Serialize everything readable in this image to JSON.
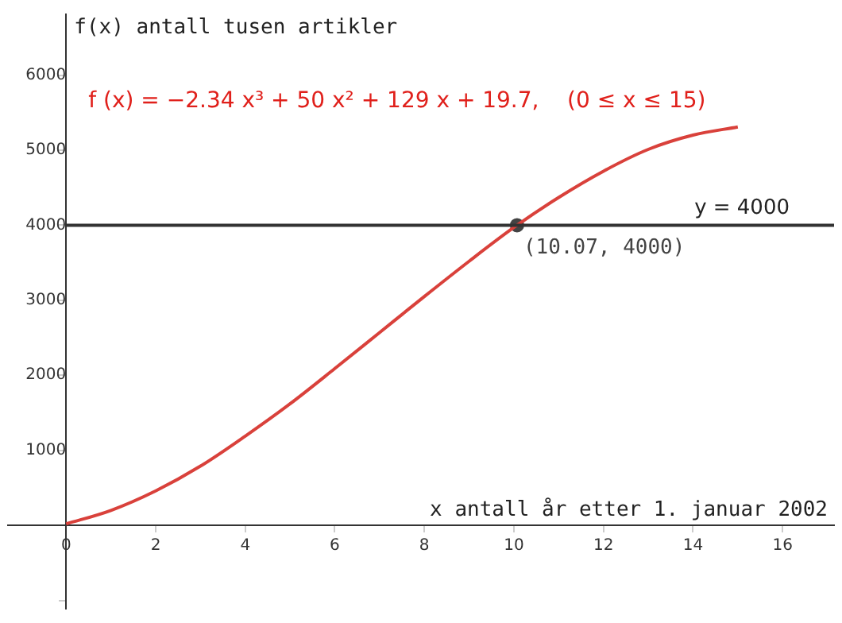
{
  "chart_data": {
    "type": "line",
    "xlabel": "x antall år etter 1. januar 2002",
    "ylabel": "f(x) antall tusen artikler",
    "xlim": [
      -1.3,
      17.15
    ],
    "ylim": [
      -1110,
      6810
    ],
    "xticks": [
      0,
      2,
      4,
      6,
      8,
      10,
      12,
      14,
      16
    ],
    "yticks": [
      {
        "value": -1000,
        "label": null
      },
      1000,
      2000,
      3000,
      4000,
      5000,
      6000
    ],
    "grid": false,
    "legend": false,
    "marker": "none",
    "series": [
      {
        "color": "#d9413b",
        "x": [
          0,
          1,
          2,
          3,
          4,
          5,
          6,
          7,
          8,
          9,
          10,
          11,
          12,
          13,
          14,
          15
        ],
        "values": [
          20,
          200,
          460,
          790,
          1190,
          1620,
          2090,
          2570,
          3050,
          3520,
          3970,
          4370,
          4720,
          5010,
          5200,
          5310
        ]
      },
      {
        "type": "scatter",
        "marker": "circle",
        "color": "#444444",
        "x": [
          10.07
        ],
        "values": [
          4000
        ]
      }
    ],
    "ref_lines": [
      {
        "axis": "y",
        "value": 4000,
        "label": "y = 4000",
        "color": "#333333"
      }
    ],
    "annotations": [
      "f (x) = −2.34 x³ + 50 x² + 129 x + 19.7,    (0 ≤ x ≤ 15)",
      {
        "text": "(10.07, 4000)",
        "x": 10.07,
        "y": 4000
      }
    ]
  }
}
